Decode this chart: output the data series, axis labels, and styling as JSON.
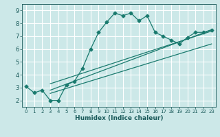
{
  "title": "",
  "xlabel": "Humidex (Indice chaleur)",
  "bg_color": "#cce8e8",
  "grid_color": "#ffffff",
  "line_color": "#1a7a6e",
  "xlim": [
    -0.5,
    23.5
  ],
  "ylim": [
    1.5,
    9.5
  ],
  "xticks": [
    0,
    1,
    2,
    3,
    4,
    5,
    6,
    7,
    8,
    9,
    10,
    11,
    12,
    13,
    14,
    15,
    16,
    17,
    18,
    19,
    20,
    21,
    22,
    23
  ],
  "yticks": [
    2,
    3,
    4,
    5,
    6,
    7,
    8,
    9
  ],
  "line1_x": [
    0,
    1,
    2,
    3,
    4,
    5,
    6,
    7,
    8,
    9,
    10,
    11,
    12,
    13,
    14,
    15,
    16,
    17,
    18,
    19,
    20,
    21,
    22,
    23
  ],
  "line1_y": [
    3.1,
    2.6,
    2.8,
    2.0,
    2.0,
    3.2,
    3.5,
    4.5,
    6.0,
    7.3,
    8.1,
    8.8,
    8.6,
    8.8,
    8.2,
    8.6,
    7.3,
    7.0,
    6.7,
    6.4,
    6.9,
    7.3,
    7.3,
    7.5
  ],
  "line2_x": [
    3,
    23
  ],
  "line2_y": [
    2.8,
    7.5
  ],
  "line3_x": [
    3,
    23
  ],
  "line3_y": [
    3.3,
    7.4
  ],
  "line4_x": [
    3,
    23
  ],
  "line4_y": [
    2.55,
    6.4
  ]
}
